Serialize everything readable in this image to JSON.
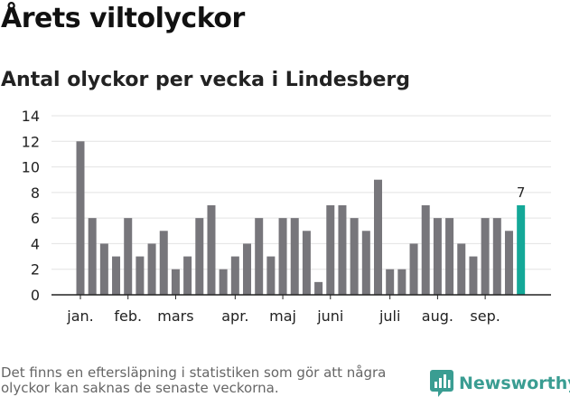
{
  "header": {
    "title": "Årets viltolyckor",
    "subtitle": "Antal olyckor per vecka i Lindesberg"
  },
  "footer": {
    "note": "Det finns en eftersläpning i statistiken som gör att några olyckor kan saknas de senaste veckorna.",
    "brand": "Newsworthy"
  },
  "colors": {
    "bar": "#77767b",
    "highlight": "#14a898",
    "brand": "#3a9d92",
    "grid": "#e3e3e3",
    "axis": "#222222"
  },
  "chart_data": {
    "type": "bar",
    "title": "Antal olyckor per vecka i Lindesberg",
    "xlabel": "",
    "ylabel": "",
    "ylim": [
      0,
      14
    ],
    "yticks": [
      0,
      2,
      4,
      6,
      8,
      10,
      12,
      14
    ],
    "grid": true,
    "weeks": [
      1,
      2,
      3,
      4,
      5,
      6,
      7,
      8,
      9,
      10,
      11,
      12,
      13,
      14,
      15,
      16,
      17,
      18,
      19,
      20,
      21,
      22,
      23,
      24,
      25,
      26,
      27,
      28,
      29,
      30,
      31,
      32,
      33,
      34,
      35,
      36,
      37,
      38
    ],
    "values": [
      12,
      6,
      4,
      3,
      6,
      3,
      4,
      5,
      2,
      3,
      6,
      7,
      2,
      3,
      4,
      6,
      3,
      6,
      6,
      5,
      1,
      7,
      7,
      6,
      5,
      9,
      2,
      2,
      4,
      7,
      6,
      6,
      4,
      3,
      6,
      6,
      5,
      7
    ],
    "highlight_index": 37,
    "highlight_label": "7",
    "month_labels": [
      {
        "label": "jan.",
        "week": 1
      },
      {
        "label": "feb.",
        "week": 5
      },
      {
        "label": "mars",
        "week": 9
      },
      {
        "label": "apr.",
        "week": 14
      },
      {
        "label": "maj",
        "week": 18
      },
      {
        "label": "juni",
        "week": 22
      },
      {
        "label": "juli",
        "week": 27
      },
      {
        "label": "aug.",
        "week": 31
      },
      {
        "label": "sep.",
        "week": 35
      }
    ]
  }
}
